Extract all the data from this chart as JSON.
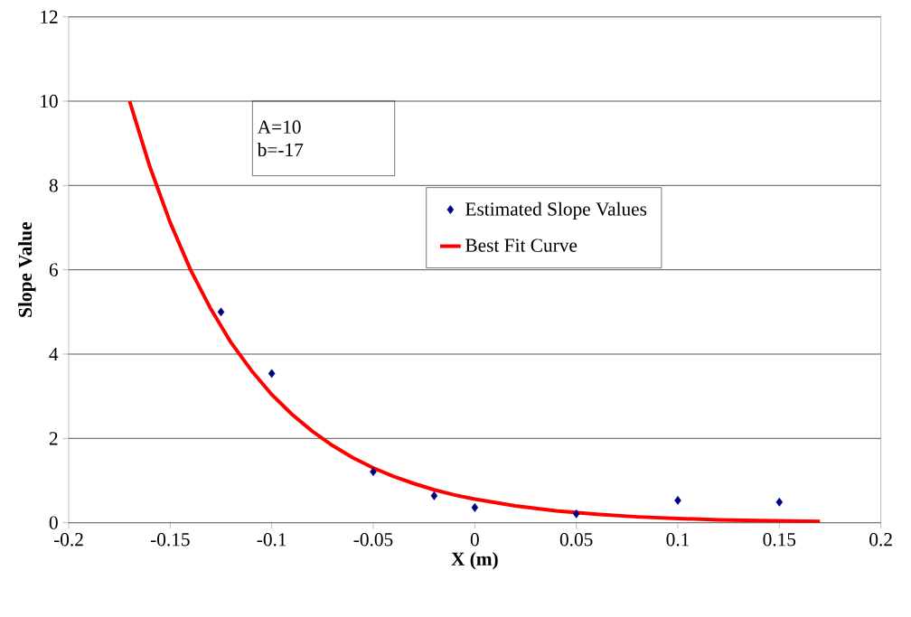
{
  "chart_data": {
    "type": "scatter",
    "xlabel": "X (m)",
    "ylabel": "Slope Value",
    "xlim": [
      -0.2,
      0.2
    ],
    "xticks": [
      -0.2,
      -0.15,
      -0.1,
      -0.05,
      0,
      0.05,
      0.1,
      0.15,
      0.2
    ],
    "ylim": [
      0,
      12
    ],
    "yticks": [
      0,
      2,
      4,
      6,
      8,
      10,
      12
    ],
    "grid": "y",
    "legend": "top right",
    "annotations": [
      "A=10",
      "b=-17"
    ],
    "series": [
      {
        "name": "Estimated Slope Values",
        "marker": "diamond",
        "color": "#000080",
        "x": [
          -0.125,
          -0.1,
          -0.05,
          -0.02,
          0,
          0.05,
          0.1,
          0.15
        ],
        "values": [
          5.0,
          3.54,
          1.21,
          0.64,
          0.36,
          0.21,
          0.53,
          0.49
        ]
      },
      {
        "name": "Best Fit Curve",
        "type": "line",
        "marker": "none",
        "line_style": "solid",
        "color": "#ff0000",
        "x": [
          -0.17,
          -0.16,
          -0.15,
          -0.14,
          -0.13,
          -0.12,
          -0.11,
          -0.1,
          -0.09,
          -0.08,
          -0.07,
          -0.06,
          -0.05,
          -0.04,
          -0.03,
          -0.02,
          -0.01,
          0,
          0.02,
          0.04,
          0.06,
          0.08,
          0.1,
          0.12,
          0.14,
          0.17
        ],
        "values": [
          10,
          8.44,
          7.12,
          6.0,
          5.07,
          4.27,
          3.61,
          3.04,
          2.57,
          2.17,
          1.83,
          1.54,
          1.3,
          1.1,
          0.93,
          0.78,
          0.66,
          0.56,
          0.4,
          0.28,
          0.2,
          0.14,
          0.1,
          0.07,
          0.05,
          0.03
        ]
      }
    ]
  }
}
